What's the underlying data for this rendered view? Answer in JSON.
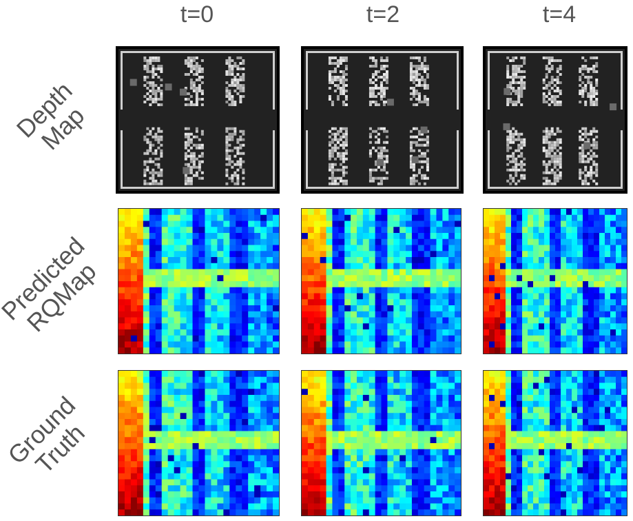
{
  "columns": [
    {
      "label": "t=0"
    },
    {
      "label": "t=2"
    },
    {
      "label": "t=4"
    }
  ],
  "rows": [
    {
      "lines": [
        "Depth",
        "Map"
      ]
    },
    {
      "lines": [
        "Predicted",
        "RQMap"
      ]
    },
    {
      "lines": [
        "Ground",
        "Truth"
      ]
    }
  ],
  "colors": {
    "depth_background": "#222222",
    "depth_frame": "#000000",
    "depth_border": "#cfcfcf",
    "depth_rack": "#bdbdbd",
    "depth_agent": "#6a6a6a",
    "heat_colormap": "jet"
  }
}
